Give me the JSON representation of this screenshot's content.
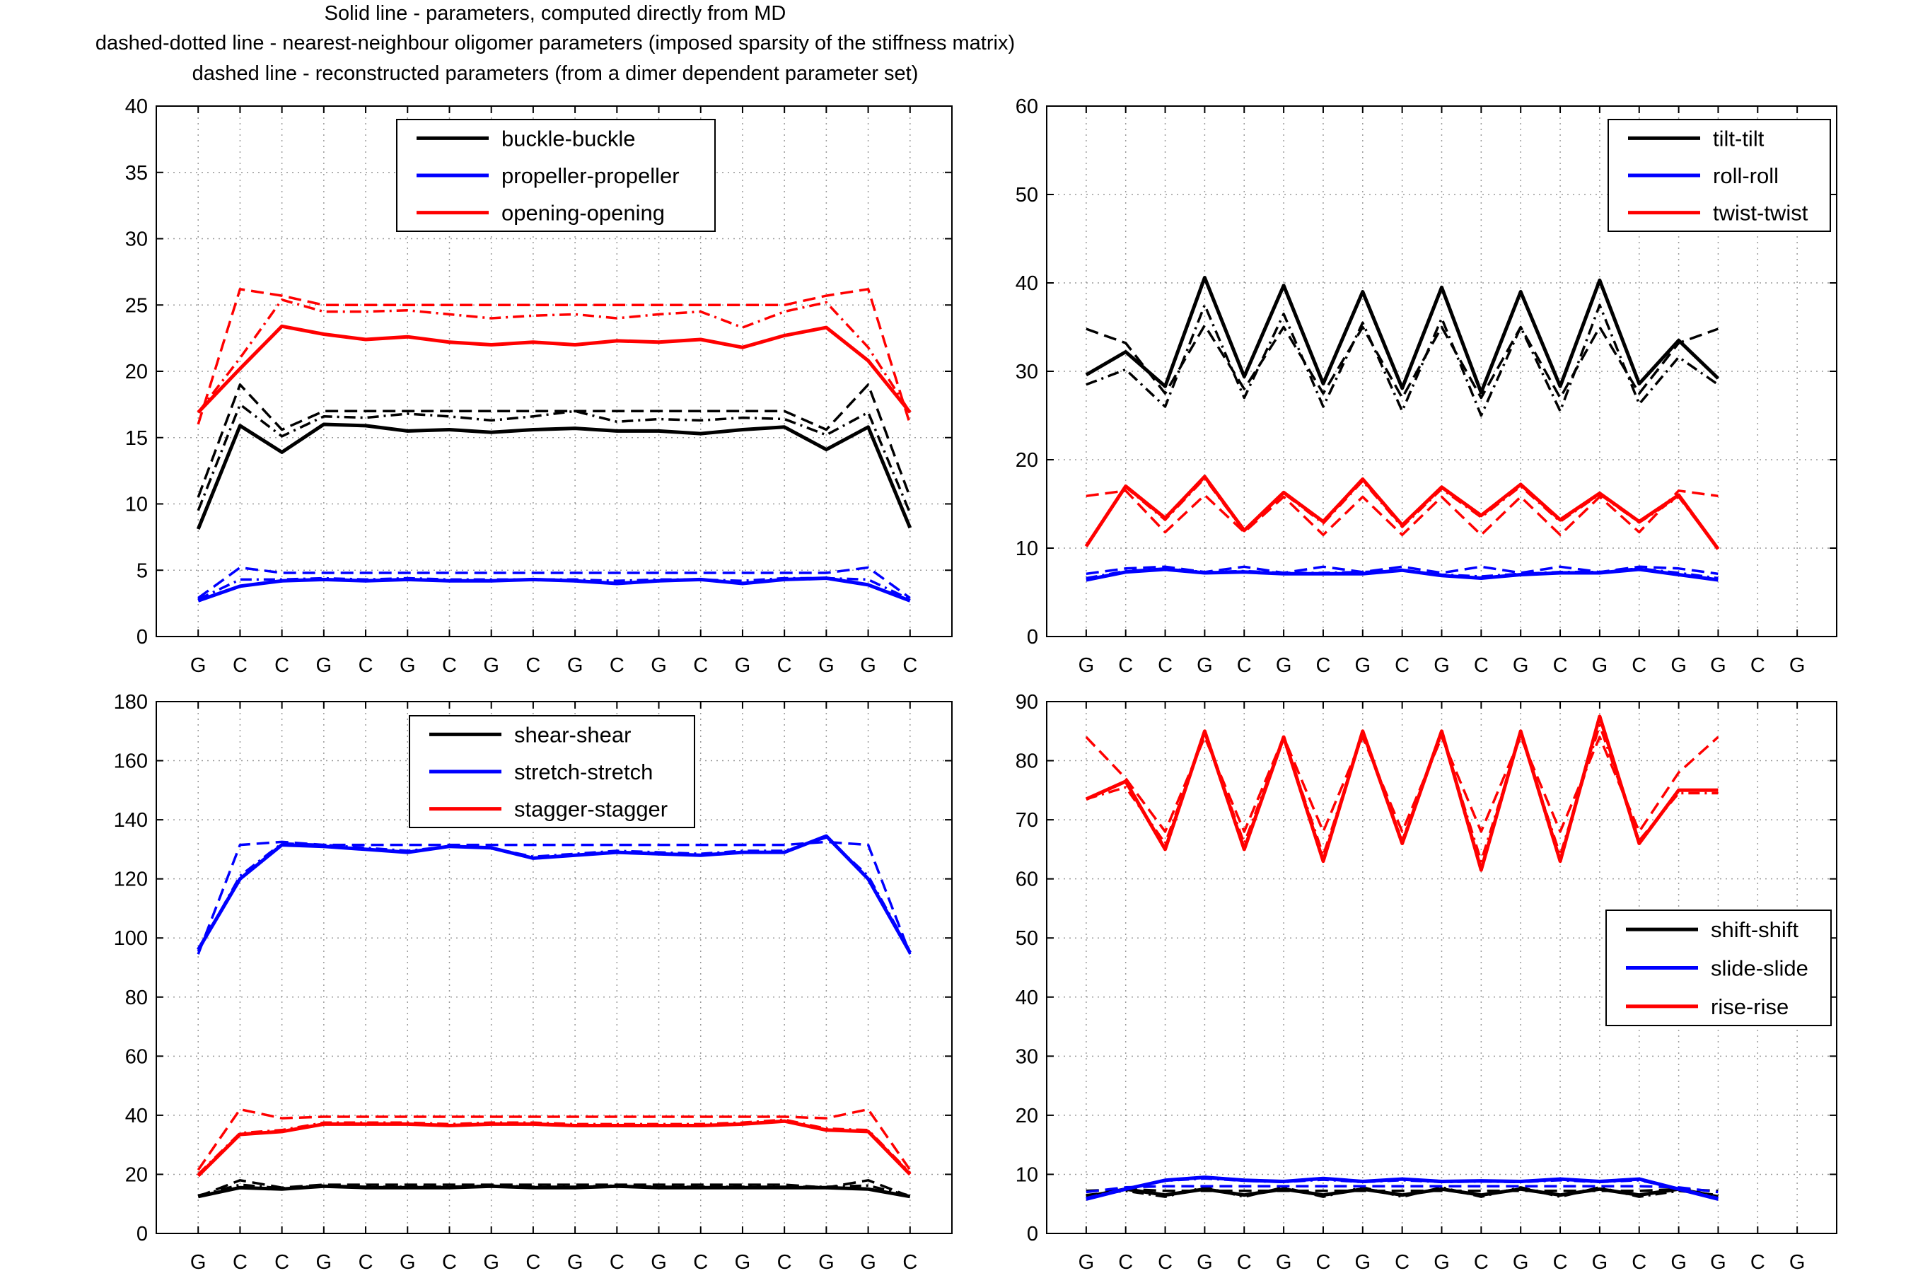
{
  "header": {
    "lines": [
      "Solid line - parameters, computed directly from MD",
      "dashed-dotted line - nearest-neighbour oligomer parameters (imposed sparsity of the stiffness matrix)",
      "dashed line - reconstructed parameters (from a dimer dependent parameter set)"
    ]
  },
  "chart_data": [
    {
      "type": "line",
      "categories": [
        "G",
        "C",
        "C",
        "G",
        "C",
        "G",
        "C",
        "G",
        "C",
        "G",
        "C",
        "G",
        "C",
        "G",
        "C",
        "G",
        "G",
        "C"
      ],
      "ylim": [
        0,
        40
      ],
      "yticks": [
        0,
        5,
        10,
        15,
        20,
        25,
        30,
        35,
        40
      ],
      "grid": true,
      "legend_position": "top-center",
      "series": [
        {
          "name": "buckle-buckle",
          "color": "#000000",
          "style": "solid",
          "values": [
            8.1,
            15.9,
            13.9,
            16.0,
            15.9,
            15.5,
            15.6,
            15.4,
            15.6,
            15.7,
            15.5,
            15.5,
            15.3,
            15.6,
            15.8,
            14.1,
            15.8,
            8.2
          ]
        },
        {
          "name": "",
          "color": "#000000",
          "style": "dashdot",
          "values": [
            9.5,
            17.5,
            15.1,
            16.6,
            16.5,
            16.8,
            16.6,
            16.3,
            16.6,
            17.0,
            16.2,
            16.4,
            16.3,
            16.5,
            16.4,
            15.2,
            16.9,
            9.3
          ]
        },
        {
          "name": "",
          "color": "#000000",
          "style": "dashed",
          "values": [
            10.5,
            19.0,
            15.6,
            17.0,
            17.0,
            17.0,
            17.0,
            17.0,
            17.0,
            17.0,
            17.0,
            17.0,
            17.0,
            17.0,
            17.0,
            15.6,
            19.0,
            10.5
          ]
        },
        {
          "name": "propeller-propeller",
          "color": "#0000ff",
          "style": "solid",
          "values": [
            2.7,
            3.8,
            4.2,
            4.3,
            4.2,
            4.3,
            4.2,
            4.2,
            4.3,
            4.2,
            4.0,
            4.2,
            4.3,
            4.0,
            4.3,
            4.4,
            3.9,
            2.7
          ]
        },
        {
          "name": "",
          "color": "#0000ff",
          "style": "dashdot",
          "values": [
            2.8,
            4.3,
            4.3,
            4.4,
            4.3,
            4.4,
            4.3,
            4.3,
            4.3,
            4.3,
            4.2,
            4.3,
            4.3,
            4.2,
            4.4,
            4.4,
            4.3,
            2.8
          ]
        },
        {
          "name": "",
          "color": "#0000ff",
          "style": "dashed",
          "values": [
            2.9,
            5.2,
            4.8,
            4.8,
            4.8,
            4.8,
            4.8,
            4.8,
            4.8,
            4.8,
            4.8,
            4.8,
            4.8,
            4.8,
            4.8,
            4.8,
            5.2,
            2.9
          ]
        },
        {
          "name": "opening-opening",
          "color": "#ff0000",
          "style": "solid",
          "values": [
            16.9,
            20.2,
            23.4,
            22.8,
            22.4,
            22.6,
            22.2,
            22.0,
            22.2,
            22.0,
            22.3,
            22.2,
            22.4,
            21.8,
            22.7,
            23.3,
            20.8,
            16.9
          ]
        },
        {
          "name": "",
          "color": "#ff0000",
          "style": "dashdot",
          "values": [
            16.9,
            21.0,
            25.4,
            24.5,
            24.5,
            24.6,
            24.3,
            24.0,
            24.2,
            24.3,
            24.0,
            24.3,
            24.5,
            23.3,
            24.5,
            25.2,
            21.8,
            16.9
          ]
        },
        {
          "name": "",
          "color": "#ff0000",
          "style": "dashed",
          "values": [
            16.0,
            26.2,
            25.7,
            25.0,
            25.0,
            25.0,
            25.0,
            25.0,
            25.0,
            25.0,
            25.0,
            25.0,
            25.0,
            25.0,
            25.0,
            25.7,
            26.2,
            16.0
          ]
        }
      ]
    },
    {
      "type": "line",
      "categories": [
        "G",
        "C",
        "C",
        "G",
        "C",
        "G",
        "C",
        "G",
        "C",
        "G",
        "C",
        "G",
        "C",
        "G",
        "C",
        "G",
        "G",
        "C"
      ],
      "ylim": [
        0,
        60
      ],
      "yticks": [
        0,
        10,
        20,
        30,
        40,
        50,
        60
      ],
      "grid": true,
      "legend_position": "top-right",
      "series": [
        {
          "name": "tilt-tilt",
          "color": "#000000",
          "style": "solid",
          "values": [
            29.6,
            32.2,
            28.3,
            40.6,
            29.4,
            39.7,
            28.6,
            39.0,
            28.1,
            39.5,
            27.6,
            39.0,
            28.3,
            40.3,
            28.6,
            33.5,
            29.2,
            null
          ]
        },
        {
          "name": "",
          "color": "#000000",
          "style": "dashdot",
          "values": [
            28.5,
            30.2,
            26.0,
            37.5,
            27.0,
            36.5,
            26.0,
            35.5,
            25.5,
            36.0,
            25.0,
            35.0,
            25.5,
            37.5,
            26.3,
            31.6,
            28.5,
            null
          ]
        },
        {
          "name": "",
          "color": "#000000",
          "style": "dashed",
          "values": [
            34.8,
            33.2,
            27.5,
            35.2,
            28.0,
            35.0,
            27.5,
            35.0,
            27.0,
            35.0,
            27.0,
            35.0,
            27.0,
            35.0,
            27.5,
            33.2,
            34.8,
            null
          ]
        },
        {
          "name": "roll-roll",
          "color": "#0000ff",
          "style": "solid",
          "values": [
            6.4,
            7.3,
            7.6,
            7.2,
            7.3,
            7.1,
            7.1,
            7.1,
            7.5,
            6.9,
            6.6,
            7.0,
            7.2,
            7.2,
            7.6,
            7.0,
            6.4,
            null
          ]
        },
        {
          "name": "",
          "color": "#0000ff",
          "style": "dashdot",
          "values": [
            6.6,
            7.4,
            7.7,
            7.3,
            7.4,
            7.2,
            7.2,
            7.3,
            7.5,
            7.0,
            6.8,
            7.1,
            7.3,
            7.3,
            7.7,
            7.2,
            6.6,
            null
          ]
        },
        {
          "name": "",
          "color": "#0000ff",
          "style": "dashed",
          "values": [
            7.1,
            7.7,
            7.9,
            7.3,
            7.9,
            7.2,
            7.9,
            7.3,
            7.9,
            7.2,
            7.9,
            7.2,
            7.9,
            7.3,
            7.9,
            7.7,
            7.1,
            null
          ]
        },
        {
          "name": "twist-twist",
          "color": "#ff0000",
          "style": "solid",
          "values": [
            10.2,
            17.0,
            13.4,
            18.1,
            12.0,
            16.3,
            13.0,
            17.8,
            12.6,
            16.9,
            13.7,
            17.2,
            13.2,
            16.2,
            13.0,
            16.0,
            9.9,
            null
          ]
        },
        {
          "name": "",
          "color": "#ff0000",
          "style": "dashdot",
          "values": [
            10.2,
            16.9,
            13.2,
            17.9,
            11.9,
            16.2,
            12.8,
            17.6,
            12.4,
            16.7,
            13.5,
            17.0,
            13.0,
            16.1,
            12.9,
            15.8,
            9.9,
            null
          ]
        },
        {
          "name": "",
          "color": "#ff0000",
          "style": "dashed",
          "values": [
            15.9,
            16.5,
            11.8,
            16.0,
            11.8,
            15.8,
            11.5,
            15.8,
            11.5,
            15.8,
            11.5,
            15.8,
            11.5,
            15.8,
            11.8,
            16.5,
            15.9,
            null
          ]
        }
      ]
    },
    {
      "type": "line",
      "categories": [
        "G",
        "C",
        "C",
        "G",
        "C",
        "G",
        "C",
        "G",
        "C",
        "G",
        "C",
        "G",
        "C",
        "G",
        "C",
        "G",
        "G",
        "C"
      ],
      "ylim": [
        0,
        180
      ],
      "yticks": [
        0,
        20,
        40,
        60,
        80,
        100,
        120,
        140,
        160,
        180
      ],
      "grid": true,
      "legend_position": "top-center",
      "series": [
        {
          "name": "shear-shear",
          "color": "#000000",
          "style": "solid",
          "values": [
            12.5,
            15.5,
            15.0,
            16.0,
            15.5,
            15.5,
            15.5,
            16.0,
            15.5,
            15.5,
            16.0,
            15.5,
            15.5,
            15.5,
            15.5,
            15.5,
            15.0,
            12.5
          ]
        },
        {
          "name": "",
          "color": "#000000",
          "style": "dashdot",
          "values": [
            12.8,
            16.5,
            15.3,
            16.2,
            15.8,
            15.8,
            15.8,
            16.2,
            15.8,
            15.8,
            16.2,
            15.8,
            15.8,
            15.8,
            15.8,
            15.8,
            16.2,
            12.8
          ]
        },
        {
          "name": "",
          "color": "#000000",
          "style": "dashed",
          "values": [
            12.5,
            18.0,
            15.5,
            16.5,
            16.5,
            16.5,
            16.5,
            16.5,
            16.5,
            16.5,
            16.5,
            16.5,
            16.5,
            16.5,
            16.5,
            15.5,
            18.0,
            12.5
          ]
        },
        {
          "name": "stretch-stretch",
          "color": "#0000ff",
          "style": "solid",
          "values": [
            96.0,
            120.0,
            131.5,
            131.0,
            130.0,
            129.0,
            131.0,
            130.5,
            127.0,
            128.0,
            129.0,
            128.5,
            128.0,
            129.0,
            129.0,
            134.5,
            120.0,
            95.0
          ]
        },
        {
          "name": "",
          "color": "#0000ff",
          "style": "dashdot",
          "values": [
            95.5,
            121.0,
            132.0,
            131.5,
            130.5,
            129.5,
            131.0,
            130.5,
            127.5,
            128.5,
            129.5,
            129.0,
            128.5,
            129.5,
            129.5,
            134.0,
            121.0,
            95.5
          ]
        },
        {
          "name": "",
          "color": "#0000ff",
          "style": "dashed",
          "values": [
            94.5,
            131.5,
            132.5,
            131.5,
            131.5,
            131.5,
            131.5,
            131.5,
            131.5,
            131.5,
            131.5,
            131.5,
            131.5,
            131.5,
            131.5,
            132.5,
            131.5,
            94.5
          ]
        },
        {
          "name": "stagger-stagger",
          "color": "#ff0000",
          "style": "solid",
          "values": [
            19.5,
            33.5,
            34.5,
            37.0,
            37.0,
            37.0,
            36.5,
            37.0,
            37.0,
            36.5,
            36.5,
            36.5,
            36.5,
            37.0,
            38.0,
            35.0,
            34.5,
            20.0
          ]
        },
        {
          "name": "",
          "color": "#ff0000",
          "style": "dashdot",
          "values": [
            20.0,
            34.0,
            35.0,
            37.5,
            37.5,
            37.5,
            37.0,
            37.5,
            37.5,
            37.0,
            37.0,
            37.0,
            37.0,
            37.5,
            38.5,
            35.5,
            35.0,
            20.5
          ]
        },
        {
          "name": "",
          "color": "#ff0000",
          "style": "dashed",
          "values": [
            21.5,
            42.0,
            39.0,
            39.5,
            39.5,
            39.5,
            39.5,
            39.5,
            39.5,
            39.5,
            39.5,
            39.5,
            39.5,
            39.5,
            39.5,
            39.0,
            42.0,
            21.5
          ]
        }
      ]
    },
    {
      "type": "line",
      "categories": [
        "G",
        "C",
        "C",
        "G",
        "C",
        "G",
        "C",
        "G",
        "C",
        "G",
        "C",
        "G",
        "C",
        "G",
        "C",
        "G",
        "G",
        "C"
      ],
      "ylim": [
        0,
        90
      ],
      "yticks": [
        0,
        10,
        20,
        30,
        40,
        50,
        60,
        70,
        80,
        90
      ],
      "grid": true,
      "legend_position": "middle-right",
      "series": [
        {
          "name": "shift-shift",
          "color": "#000000",
          "style": "solid",
          "values": [
            6.2,
            7.5,
            6.5,
            7.5,
            6.5,
            7.5,
            6.5,
            7.5,
            6.5,
            7.5,
            6.5,
            7.5,
            6.5,
            7.5,
            6.5,
            7.5,
            6.2,
            null
          ]
        },
        {
          "name": "",
          "color": "#000000",
          "style": "dashdot",
          "values": [
            6.5,
            7.2,
            6.2,
            7.8,
            6.2,
            7.8,
            6.2,
            7.8,
            6.2,
            7.8,
            6.2,
            7.8,
            6.2,
            7.8,
            6.2,
            7.2,
            6.5,
            null
          ]
        },
        {
          "name": "",
          "color": "#000000",
          "style": "dashed",
          "values": [
            7.2,
            7.5,
            7.2,
            7.2,
            7.2,
            7.2,
            7.2,
            7.2,
            7.2,
            7.2,
            7.2,
            7.2,
            7.2,
            7.2,
            7.2,
            7.5,
            7.2,
            null
          ]
        },
        {
          "name": "slide-slide",
          "color": "#0000ff",
          "style": "solid",
          "values": [
            5.8,
            7.5,
            9.0,
            9.5,
            9.0,
            8.8,
            9.3,
            8.8,
            9.2,
            8.8,
            8.9,
            8.8,
            9.2,
            8.8,
            9.2,
            7.5,
            5.8,
            null
          ]
        },
        {
          "name": "",
          "color": "#0000ff",
          "style": "dashdot",
          "values": [
            6.0,
            7.6,
            8.9,
            9.3,
            8.9,
            8.7,
            9.1,
            8.7,
            9.0,
            8.7,
            8.8,
            8.7,
            9.0,
            8.7,
            9.0,
            7.6,
            6.0,
            null
          ]
        },
        {
          "name": "",
          "color": "#0000ff",
          "style": "dashed",
          "values": [
            7.0,
            7.8,
            8.0,
            8.0,
            8.0,
            8.0,
            8.0,
            8.0,
            8.0,
            8.0,
            8.0,
            8.0,
            8.0,
            8.0,
            8.0,
            7.8,
            7.0,
            null
          ]
        },
        {
          "name": "rise-rise",
          "color": "#ff0000",
          "style": "solid",
          "values": [
            73.5,
            76.5,
            65.0,
            85.0,
            65.0,
            84.0,
            63.0,
            85.0,
            66.0,
            85.0,
            61.5,
            85.0,
            63.0,
            87.5,
            66.0,
            75.0,
            75.0,
            null
          ]
        },
        {
          "name": "",
          "color": "#ff0000",
          "style": "dashdot",
          "values": [
            73.5,
            75.5,
            66.0,
            84.5,
            66.0,
            84.0,
            64.0,
            84.5,
            66.5,
            84.5,
            63.0,
            84.5,
            64.0,
            86.0,
            66.5,
            74.5,
            74.5,
            null
          ]
        },
        {
          "name": "",
          "color": "#ff0000",
          "style": "dashed",
          "values": [
            84.0,
            77.0,
            68.0,
            84.0,
            68.0,
            84.0,
            68.0,
            84.0,
            68.0,
            84.0,
            68.0,
            84.0,
            68.0,
            84.0,
            68.0,
            78.0,
            84.0,
            null
          ]
        }
      ]
    }
  ]
}
